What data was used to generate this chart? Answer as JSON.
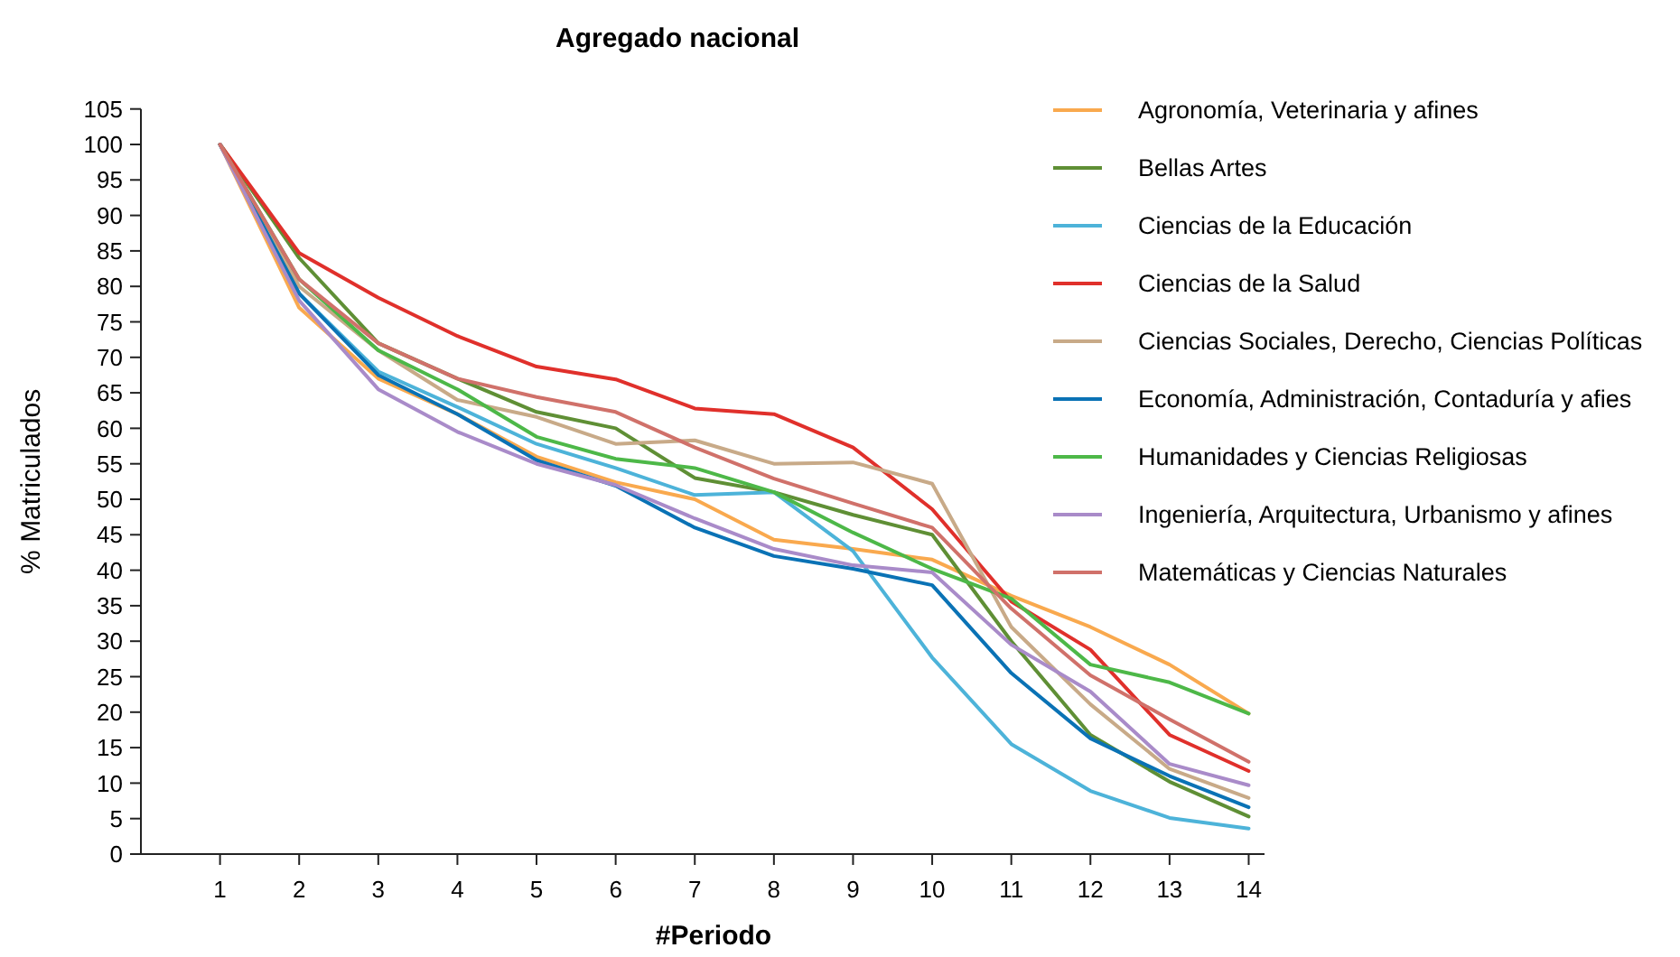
{
  "chart_data": {
    "type": "line",
    "title": "Agregado nacional",
    "xlabel": "#Periodo",
    "ylabel": "% Matriculados",
    "x": [
      1,
      2,
      3,
      4,
      5,
      6,
      7,
      8,
      9,
      10,
      11,
      12,
      13,
      14
    ],
    "xlim": [
      0,
      14.2
    ],
    "xticks": [
      1,
      2,
      3,
      4,
      5,
      6,
      7,
      8,
      9,
      10,
      11,
      12,
      13,
      14
    ],
    "ylim": [
      0,
      105
    ],
    "yticks": [
      0,
      5,
      10,
      15,
      20,
      25,
      30,
      35,
      40,
      45,
      50,
      55,
      60,
      65,
      70,
      75,
      80,
      85,
      90,
      95,
      100,
      105
    ],
    "grid": false,
    "legend": "top right",
    "marker": "none",
    "line_style": "solid",
    "series": [
      {
        "name": "Agronomía, Veterinaria y afines",
        "color": "#f9a94e",
        "values": [
          100,
          77,
          67,
          62,
          56,
          52.4,
          50,
          44.3,
          43,
          41.5,
          36.4,
          32,
          26.7,
          19.8
        ]
      },
      {
        "name": "Bellas Artes",
        "color": "#5f8f35",
        "values": [
          100,
          84,
          72,
          67,
          62.3,
          60,
          53,
          51,
          47.8,
          45,
          30,
          16.8,
          10.2,
          5.3
        ]
      },
      {
        "name": "Ciencias de la Educación",
        "color": "#4db3d9",
        "values": [
          100,
          79,
          68,
          63,
          57.8,
          54.4,
          50.6,
          51,
          42.7,
          27.7,
          15.5,
          8.9,
          5.1,
          3.6
        ]
      },
      {
        "name": "Ciencias de la Salud",
        "color": "#e0302b",
        "values": [
          100,
          84.7,
          78.4,
          73,
          68.7,
          66.9,
          62.8,
          62,
          57.3,
          48.6,
          35.6,
          28.8,
          16.8,
          11.7
        ]
      },
      {
        "name": "Ciencias Sociales, Derecho, Ciencias Políticas",
        "color": "#c8aa88",
        "values": [
          100,
          80,
          71,
          64,
          61.6,
          57.8,
          58.3,
          55,
          55.2,
          52.2,
          32,
          21.1,
          12,
          7.9
        ]
      },
      {
        "name": "Economía, Administración, Contaduría y afies",
        "color": "#0a72b5",
        "values": [
          100,
          79,
          67.5,
          62,
          55.5,
          51.9,
          46,
          42,
          40.2,
          37.9,
          25.5,
          16.3,
          11,
          6.6
        ]
      },
      {
        "name": "Humanidades y Ciencias Religiosas",
        "color": "#4db848",
        "values": [
          100,
          81,
          71,
          65.5,
          58.8,
          55.7,
          54.4,
          51,
          45.3,
          40.2,
          36,
          26.7,
          24.2,
          19.8
        ]
      },
      {
        "name": "Ingeniería, Arquitectura, Urbanismo y afines",
        "color": "#a98bc9",
        "values": [
          100,
          78,
          65.5,
          59.5,
          55,
          52,
          47.3,
          43,
          40.7,
          39.7,
          29.5,
          22.9,
          12.7,
          9.7
        ]
      },
      {
        "name": "Matemáticas y Ciencias Naturales",
        "color": "#d0716a",
        "values": [
          100,
          81,
          72,
          67,
          64.4,
          62.3,
          57.3,
          52.9,
          49.4,
          46,
          34.6,
          25.2,
          19,
          13
        ]
      }
    ]
  }
}
